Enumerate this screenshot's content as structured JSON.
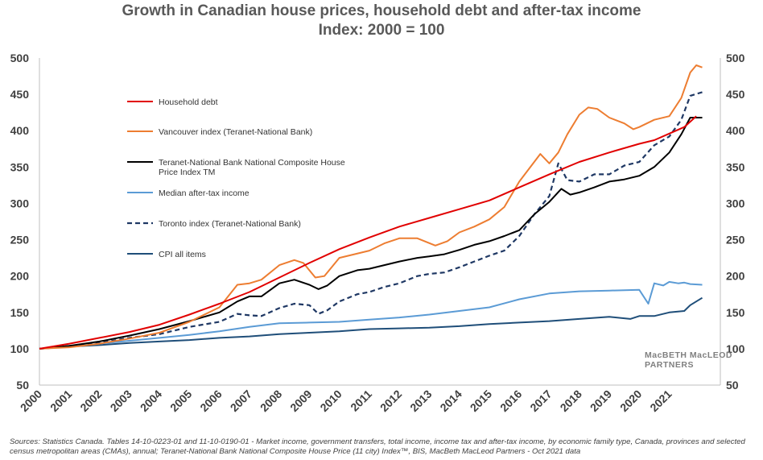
{
  "chart_data": {
    "type": "line",
    "title": "Growth in Canadian house prices, household debt and after-tax income",
    "subtitle": "Index: 2000 = 100",
    "xlabel": "",
    "ylabel": "",
    "xlim": [
      2000,
      2022
    ],
    "ylim": [
      50,
      500
    ],
    "y_ticks": [
      50,
      100,
      150,
      200,
      250,
      300,
      350,
      400,
      450,
      500
    ],
    "x_ticks": [
      2000,
      2001,
      2002,
      2003,
      2004,
      2005,
      2006,
      2007,
      2008,
      2009,
      2010,
      2011,
      2012,
      2013,
      2014,
      2015,
      2016,
      2017,
      2018,
      2019,
      2020,
      2021
    ],
    "grid": false,
    "legend_position": "left",
    "series": [
      {
        "name": "Household debt",
        "color": "#e10000",
        "dash": "solid",
        "points": [
          [
            2000,
            100
          ],
          [
            2001,
            107
          ],
          [
            2002,
            115
          ],
          [
            2003,
            123
          ],
          [
            2004,
            133
          ],
          [
            2005,
            147
          ],
          [
            2006,
            162
          ],
          [
            2007,
            178
          ],
          [
            2008,
            198
          ],
          [
            2009,
            218
          ],
          [
            2010,
            237
          ],
          [
            2011,
            253
          ],
          [
            2012,
            268
          ],
          [
            2013,
            280
          ],
          [
            2014,
            292
          ],
          [
            2015,
            304
          ],
          [
            2016,
            322
          ],
          [
            2017,
            340
          ],
          [
            2018,
            357
          ],
          [
            2019,
            370
          ],
          [
            2020,
            382
          ],
          [
            2020.5,
            387
          ],
          [
            2021,
            396
          ],
          [
            2021.5,
            405
          ],
          [
            2021.9,
            420
          ]
        ]
      },
      {
        "name": "Vancouver index (Teranet-National Bank)",
        "color": "#ed7d31",
        "dash": "solid",
        "points": [
          [
            2000,
            100
          ],
          [
            2001,
            102
          ],
          [
            2002,
            107
          ],
          [
            2003,
            114
          ],
          [
            2004,
            122
          ],
          [
            2005,
            137
          ],
          [
            2006,
            157
          ],
          [
            2006.6,
            188
          ],
          [
            2007,
            190
          ],
          [
            2007.4,
            195
          ],
          [
            2008,
            215
          ],
          [
            2008.5,
            222
          ],
          [
            2008.8,
            218
          ],
          [
            2009.2,
            198
          ],
          [
            2009.5,
            200
          ],
          [
            2010,
            225
          ],
          [
            2010.5,
            230
          ],
          [
            2011,
            235
          ],
          [
            2011.5,
            245
          ],
          [
            2012,
            252
          ],
          [
            2012.6,
            252
          ],
          [
            2013.2,
            242
          ],
          [
            2013.6,
            248
          ],
          [
            2014,
            260
          ],
          [
            2014.5,
            268
          ],
          [
            2015,
            278
          ],
          [
            2015.5,
            295
          ],
          [
            2016,
            330
          ],
          [
            2016.7,
            368
          ],
          [
            2017,
            355
          ],
          [
            2017.3,
            370
          ],
          [
            2017.6,
            395
          ],
          [
            2018,
            422
          ],
          [
            2018.3,
            432
          ],
          [
            2018.6,
            430
          ],
          [
            2019,
            418
          ],
          [
            2019.5,
            410
          ],
          [
            2019.8,
            402
          ],
          [
            2020,
            405
          ],
          [
            2020.5,
            415
          ],
          [
            2021,
            420
          ],
          [
            2021.4,
            445
          ],
          [
            2021.7,
            480
          ],
          [
            2021.9,
            490
          ],
          [
            2022.1,
            487
          ]
        ]
      },
      {
        "name": "Teranet-National Bank National Composite House Price Index TM",
        "color": "#000000",
        "dash": "solid",
        "points": [
          [
            2000,
            100
          ],
          [
            2001,
            104
          ],
          [
            2002,
            110
          ],
          [
            2003,
            118
          ],
          [
            2004,
            127
          ],
          [
            2005,
            138
          ],
          [
            2006,
            150
          ],
          [
            2006.6,
            165
          ],
          [
            2007,
            172
          ],
          [
            2007.4,
            172
          ],
          [
            2008,
            190
          ],
          [
            2008.5,
            195
          ],
          [
            2009,
            188
          ],
          [
            2009.3,
            182
          ],
          [
            2009.6,
            187
          ],
          [
            2010,
            200
          ],
          [
            2010.6,
            208
          ],
          [
            2011,
            210
          ],
          [
            2011.5,
            215
          ],
          [
            2012,
            220
          ],
          [
            2012.6,
            225
          ],
          [
            2013,
            227
          ],
          [
            2013.5,
            230
          ],
          [
            2014,
            236
          ],
          [
            2014.5,
            243
          ],
          [
            2015,
            248
          ],
          [
            2015.5,
            255
          ],
          [
            2016,
            263
          ],
          [
            2016.5,
            285
          ],
          [
            2017,
            302
          ],
          [
            2017.4,
            320
          ],
          [
            2017.7,
            312
          ],
          [
            2018,
            315
          ],
          [
            2018.5,
            322
          ],
          [
            2019,
            330
          ],
          [
            2019.5,
            333
          ],
          [
            2020,
            338
          ],
          [
            2020.5,
            350
          ],
          [
            2021,
            370
          ],
          [
            2021.4,
            395
          ],
          [
            2021.7,
            418
          ],
          [
            2022.1,
            418
          ]
        ]
      },
      {
        "name": "Median after-tax income",
        "color": "#5b9bd5",
        "dash": "solid",
        "points": [
          [
            2000,
            100
          ],
          [
            2001,
            103
          ],
          [
            2002,
            107
          ],
          [
            2003,
            111
          ],
          [
            2004,
            115
          ],
          [
            2005,
            119
          ],
          [
            2006,
            124
          ],
          [
            2007,
            130
          ],
          [
            2008,
            135
          ],
          [
            2009,
            136
          ],
          [
            2010,
            137
          ],
          [
            2011,
            140
          ],
          [
            2012,
            143
          ],
          [
            2013,
            147
          ],
          [
            2014,
            152
          ],
          [
            2015,
            157
          ],
          [
            2016,
            168
          ],
          [
            2017,
            176
          ],
          [
            2018,
            179
          ],
          [
            2019,
            180
          ],
          [
            2020,
            181
          ],
          [
            2020.3,
            162
          ],
          [
            2020.5,
            190
          ],
          [
            2020.8,
            187
          ],
          [
            2021,
            192
          ],
          [
            2021.3,
            190
          ],
          [
            2021.5,
            191
          ],
          [
            2021.7,
            189
          ],
          [
            2022.1,
            188
          ]
        ]
      },
      {
        "name": "Toronto index (Teranet-National Bank)",
        "color": "#1f3864",
        "dash": "dashed",
        "points": [
          [
            2000,
            100
          ],
          [
            2001,
            103
          ],
          [
            2002,
            108
          ],
          [
            2003,
            115
          ],
          [
            2004,
            120
          ],
          [
            2005,
            130
          ],
          [
            2006,
            137
          ],
          [
            2006.6,
            148
          ],
          [
            2007,
            146
          ],
          [
            2007.4,
            145
          ],
          [
            2008,
            156
          ],
          [
            2008.5,
            162
          ],
          [
            2009,
            160
          ],
          [
            2009.3,
            148
          ],
          [
            2009.6,
            153
          ],
          [
            2010,
            165
          ],
          [
            2010.6,
            175
          ],
          [
            2011,
            178
          ],
          [
            2011.5,
            185
          ],
          [
            2012,
            190
          ],
          [
            2012.6,
            200
          ],
          [
            2013,
            203
          ],
          [
            2013.5,
            205
          ],
          [
            2014,
            212
          ],
          [
            2014.5,
            220
          ],
          [
            2015,
            228
          ],
          [
            2015.5,
            235
          ],
          [
            2016,
            255
          ],
          [
            2016.5,
            285
          ],
          [
            2017,
            310
          ],
          [
            2017.3,
            355
          ],
          [
            2017.6,
            332
          ],
          [
            2018,
            330
          ],
          [
            2018.5,
            340
          ],
          [
            2019,
            340
          ],
          [
            2019.5,
            352
          ],
          [
            2020,
            357
          ],
          [
            2020.5,
            380
          ],
          [
            2021,
            392
          ],
          [
            2021.4,
            415
          ],
          [
            2021.7,
            448
          ],
          [
            2022.1,
            453
          ]
        ]
      },
      {
        "name": "CPI all items",
        "color": "#1f4e79",
        "dash": "solid",
        "points": [
          [
            2000,
            100
          ],
          [
            2001,
            103
          ],
          [
            2002,
            105
          ],
          [
            2003,
            108
          ],
          [
            2004,
            110
          ],
          [
            2005,
            112
          ],
          [
            2006,
            115
          ],
          [
            2007,
            117
          ],
          [
            2008,
            120
          ],
          [
            2009,
            122
          ],
          [
            2010,
            124
          ],
          [
            2011,
            127
          ],
          [
            2012,
            128
          ],
          [
            2013,
            129
          ],
          [
            2014,
            131
          ],
          [
            2015,
            134
          ],
          [
            2016,
            136
          ],
          [
            2017,
            138
          ],
          [
            2018,
            141
          ],
          [
            2019,
            144
          ],
          [
            2019.7,
            141
          ],
          [
            2020,
            145
          ],
          [
            2020.5,
            145
          ],
          [
            2021,
            150
          ],
          [
            2021.5,
            152
          ],
          [
            2021.7,
            160
          ],
          [
            2022.1,
            170
          ]
        ]
      }
    ]
  },
  "watermark": {
    "line1": "MacBETH MacLEOD",
    "line2": "PARTNERS"
  },
  "source_text": "Sources: Statistics Canada. Tables 14-10-0223-01 and 11-10-0190-01 -  Market income, government transfers, total income, income tax and after-tax income, by economic family type, Canada, provinces and selected census metropolitan areas (CMAs), annual; Teranet-National Bank National Composite House Price (11 city) Index™, BIS, MacBeth MacLeod Partners - Oct 2021 data"
}
